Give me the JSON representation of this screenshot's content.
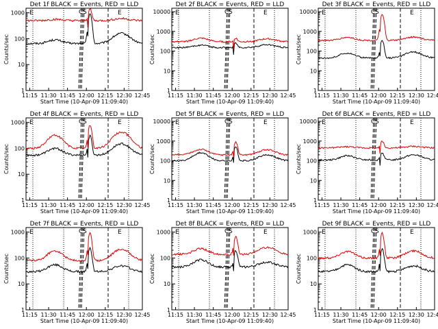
{
  "colors": {
    "events": "#000000",
    "lld": "#e00000",
    "background": "#ffffff"
  },
  "chart_data": [
    {
      "type": "line",
      "title": "Det 1f BLACK = Events, RED = LLD",
      "ylabel": "Counts/sec",
      "xlabel": "Start Time (10-Apr-09 11:09:40)",
      "xticks": [
        "11:15",
        "11:30",
        "11:45",
        "12:00",
        "12:15",
        "12:30",
        "12:45"
      ],
      "yticks": [
        "1",
        "10",
        "100",
        "1000"
      ],
      "ylim": [
        1,
        1500
      ],
      "yscale": "log",
      "markers": {
        "E_left": "E",
        "C": "C",
        "S": "S",
        "E_right": "E"
      },
      "series": [
        {
          "name": "BLACK = Events",
          "color": "#000000",
          "baseline": 65,
          "peak": 950,
          "bumps": [
            90,
            160
          ]
        },
        {
          "name": "RED = LLD",
          "color": "#e00000",
          "baseline": 500,
          "peak": 1400,
          "bumps": [
            560,
            600
          ]
        }
      ]
    },
    {
      "type": "line",
      "title": "Det 2f BLACK = Events, RED = LLD",
      "ylabel": "Counts/sec",
      "xlabel": "Start Time (10-Apr-09 11:09:40)",
      "xticks": [
        "11:15",
        "11:30",
        "11:45",
        "12:00",
        "12:15",
        "12:30",
        "12:45"
      ],
      "yticks": [
        "1",
        "10",
        "100",
        "1000",
        "10000"
      ],
      "ylim": [
        1,
        15000
      ],
      "yscale": "log",
      "markers": {
        "E_left": "E",
        "C": "C",
        "S": "S",
        "E_right": "E"
      },
      "series": [
        {
          "name": "BLACK = Events",
          "color": "#000000",
          "baseline": 150,
          "peak": 250,
          "bumps": [
            200,
            210
          ]
        },
        {
          "name": "RED = LLD",
          "color": "#e00000",
          "baseline": 300,
          "peak": 450,
          "bumps": [
            450,
            420
          ]
        }
      ]
    },
    {
      "type": "line",
      "title": "Det 3f BLACK = Events, RED = LLD",
      "ylabel": "Counts/sec",
      "xlabel": "Start Time (10-Apr-09 11:09:40)",
      "xticks": [
        "11:15",
        "11:30",
        "11:45",
        "12:00",
        "12:15",
        "12:30",
        "12:45"
      ],
      "yticks": [
        "1",
        "10",
        "100",
        "1000",
        "10000"
      ],
      "ylim": [
        1,
        15000
      ],
      "yscale": "log",
      "markers": {
        "E_left": "E",
        "C": "C",
        "S": "S",
        "E_right": "E"
      },
      "series": [
        {
          "name": "BLACK = Events",
          "color": "#000000",
          "baseline": 45,
          "peak": 350,
          "bumps": [
            80,
            90
          ]
        },
        {
          "name": "RED = LLD",
          "color": "#e00000",
          "baseline": 350,
          "peak": 7000,
          "bumps": [
            500,
            520
          ]
        }
      ]
    },
    {
      "type": "line",
      "title": "Det 4f BLACK = Events, RED = LLD",
      "ylabel": "Counts/sec",
      "xlabel": "Start Time (10-Apr-09 11:09:40)",
      "xticks": [
        "11:15",
        "11:30",
        "11:45",
        "12:00",
        "12:15",
        "12:30",
        "12:45"
      ],
      "yticks": [
        "1",
        "10",
        "100",
        "1000"
      ],
      "ylim": [
        1,
        1500
      ],
      "yscale": "log",
      "markers": {
        "E_left": "E",
        "C": "C",
        "S": "S",
        "E_right": "E"
      },
      "series": [
        {
          "name": "BLACK = Events",
          "color": "#000000",
          "baseline": 55,
          "peak": 300,
          "bumps": [
            100,
            150
          ]
        },
        {
          "name": "RED = LLD",
          "color": "#e00000",
          "baseline": 100,
          "peak": 800,
          "bumps": [
            320,
            420
          ]
        }
      ]
    },
    {
      "type": "line",
      "title": "Det 5f BLACK = Events, RED = LLD",
      "ylabel": "Counts/sec",
      "xlabel": "Start Time (10-Apr-09 11:09:40)",
      "xticks": [
        "11:15",
        "11:30",
        "11:45",
        "12:00",
        "12:15",
        "12:30",
        "12:45"
      ],
      "yticks": [
        "1",
        "10",
        "100",
        "1000",
        "10000"
      ],
      "ylim": [
        1,
        15000
      ],
      "yscale": "log",
      "markers": {
        "E_left": "E",
        "C": "C",
        "S": "S",
        "E_right": "E"
      },
      "series": [
        {
          "name": "BLACK = Events",
          "color": "#000000",
          "baseline": 100,
          "peak": 500,
          "bumps": [
            250,
            200
          ]
        },
        {
          "name": "RED = LLD",
          "color": "#e00000",
          "baseline": 200,
          "peak": 900,
          "bumps": [
            380,
            360
          ]
        }
      ]
    },
    {
      "type": "line",
      "title": "Det 6f BLACK = Events, RED = LLD",
      "ylabel": "Counts/sec",
      "xlabel": "Start Time (10-Apr-09 11:09:40)",
      "xticks": [
        "11:15",
        "11:30",
        "11:45",
        "12:00",
        "12:15",
        "12:30",
        "12:45"
      ],
      "yticks": [
        "1",
        "10",
        "100",
        "1000",
        "10000"
      ],
      "ylim": [
        1,
        15000
      ],
      "yscale": "log",
      "markers": {
        "E_left": "E",
        "C": "C",
        "S": "S",
        "E_right": "E"
      },
      "series": [
        {
          "name": "BLACK = Events",
          "color": "#000000",
          "baseline": 110,
          "peak": 260,
          "bumps": [
            180,
            200
          ]
        },
        {
          "name": "RED = LLD",
          "color": "#e00000",
          "baseline": 450,
          "peak": 1000,
          "bumps": [
            520,
            540
          ]
        }
      ]
    },
    {
      "type": "line",
      "title": "Det 7f BLACK = Events, RED = LLD",
      "ylabel": "Counts/sec",
      "xlabel": "Start Time (10-Apr-09 11:09:40)",
      "xticks": [
        "11:15",
        "11:30",
        "11:45",
        "12:00",
        "12:15",
        "12:30",
        "12:45"
      ],
      "yticks": [
        "1",
        "10",
        "100",
        "1000"
      ],
      "ylim": [
        1,
        1500
      ],
      "yscale": "log",
      "markers": {
        "E_left": "E",
        "C": "C",
        "S": "S",
        "E_right": "E"
      },
      "series": [
        {
          "name": "BLACK = Events",
          "color": "#000000",
          "baseline": 30,
          "peak": 250,
          "bumps": [
            55,
            50
          ]
        },
        {
          "name": "RED = LLD",
          "color": "#e00000",
          "baseline": 80,
          "peak": 900,
          "bumps": [
            190,
            220
          ]
        }
      ]
    },
    {
      "type": "line",
      "title": "Det 8f BLACK = Events, RED = LLD",
      "ylabel": "Counts/sec",
      "xlabel": "Start Time (10-Apr-09 11:09:40)",
      "xticks": [
        "11:15",
        "11:30",
        "11:45",
        "12:00",
        "12:15",
        "12:30",
        "12:45"
      ],
      "yticks": [
        "1",
        "10",
        "100",
        "1000"
      ],
      "ylim": [
        1,
        1500
      ],
      "yscale": "log",
      "markers": {
        "E_left": "E",
        "C": "C",
        "S": "S",
        "E_right": "E"
      },
      "series": [
        {
          "name": "BLACK = Events",
          "color": "#000000",
          "baseline": 45,
          "peak": 200,
          "bumps": [
            85,
            70
          ]
        },
        {
          "name": "RED = LLD",
          "color": "#e00000",
          "baseline": 140,
          "peak": 700,
          "bumps": [
            230,
            260
          ]
        }
      ]
    },
    {
      "type": "line",
      "title": "Det 9f BLACK = Events, RED = LLD",
      "ylabel": "Counts/sec",
      "xlabel": "Start Time (10-Apr-09 11:09:40)",
      "xticks": [
        "11:15",
        "11:30",
        "11:45",
        "12:00",
        "12:15",
        "12:30",
        "12:45"
      ],
      "yticks": [
        "1",
        "10",
        "100",
        "1000"
      ],
      "ylim": [
        1,
        1500
      ],
      "yscale": "log",
      "markers": {
        "E_left": "E",
        "C": "C",
        "S": "S",
        "E_right": "E"
      },
      "series": [
        {
          "name": "BLACK = Events",
          "color": "#000000",
          "baseline": 30,
          "peak": 220,
          "bumps": [
            55,
            50
          ]
        },
        {
          "name": "RED = LLD",
          "color": "#e00000",
          "baseline": 100,
          "peak": 900,
          "bumps": [
            180,
            190
          ]
        }
      ]
    }
  ]
}
